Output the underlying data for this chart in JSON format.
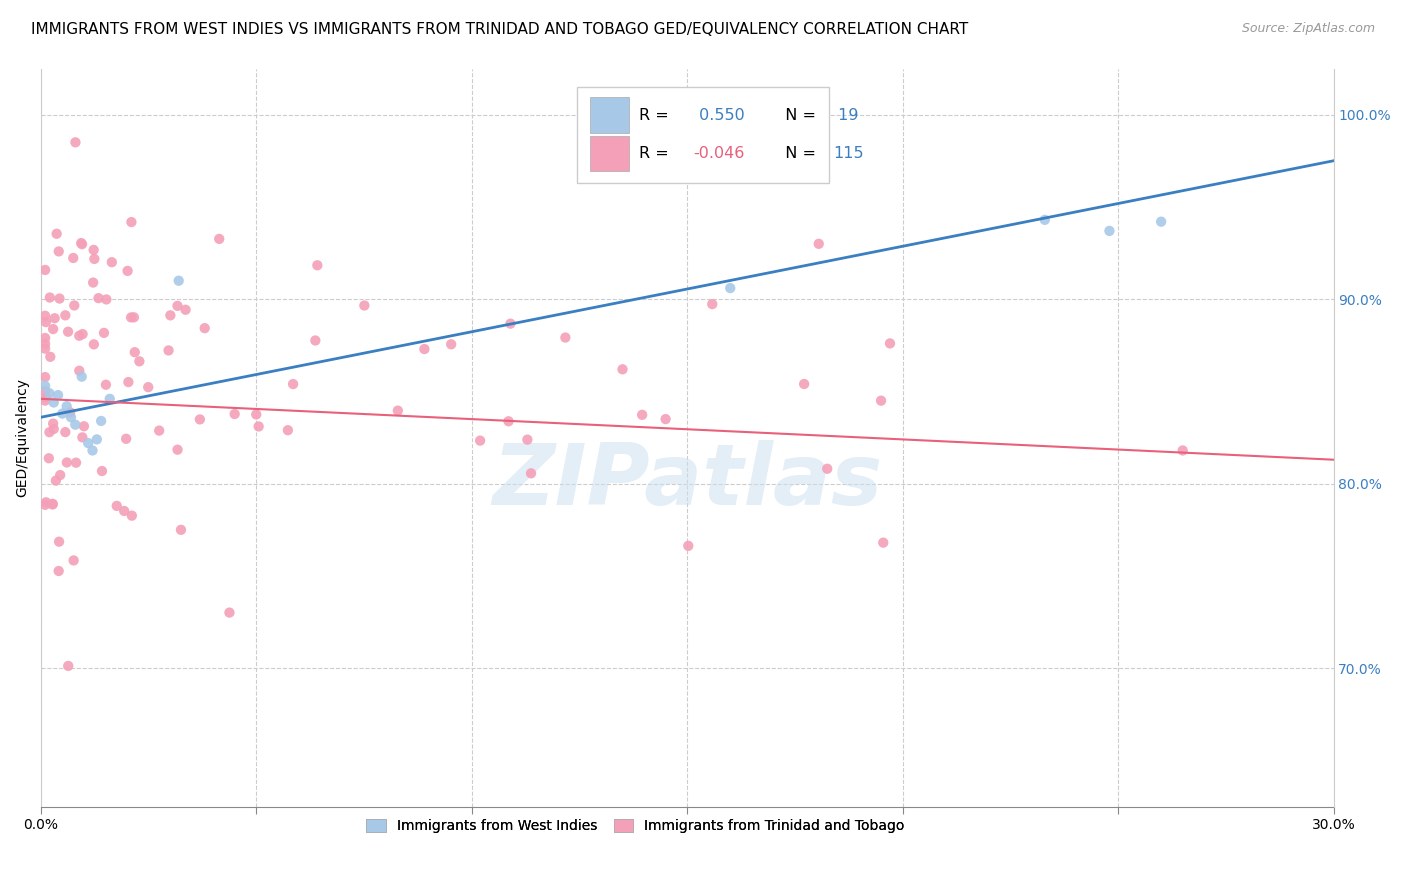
{
  "title": "IMMIGRANTS FROM WEST INDIES VS IMMIGRANTS FROM TRINIDAD AND TOBAGO GED/EQUIVALENCY CORRELATION CHART",
  "source": "Source: ZipAtlas.com",
  "ylabel": "GED/Equivalency",
  "xlim": [
    0.0,
    0.3
  ],
  "ylim": [
    0.625,
    1.025
  ],
  "xticks": [
    0.0,
    0.05,
    0.1,
    0.15,
    0.2,
    0.25,
    0.3
  ],
  "xticklabels": [
    "0.0%",
    "",
    "",
    "",
    "",
    "",
    "30.0%"
  ],
  "yticks_right": [
    0.7,
    0.8,
    0.9,
    1.0
  ],
  "ytick_labels_right": [
    "70.0%",
    "80.0%",
    "90.0%",
    "100.0%"
  ],
  "blue_R": "0.550",
  "blue_N": "19",
  "pink_R": "-0.046",
  "pink_N": "115",
  "blue_color": "#a8c8e8",
  "pink_color": "#f4a0b8",
  "blue_line_color": "#3a7fc1",
  "pink_line_color": "#e8607a",
  "legend_label_blue": "Immigrants from West Indies",
  "legend_label_pink": "Immigrants from Trinidad and Tobago",
  "watermark": "ZIPatlas",
  "title_fontsize": 11,
  "source_fontsize": 9,
  "axis_label_fontsize": 10,
  "tick_fontsize": 10,
  "legend_fontsize": 11
}
